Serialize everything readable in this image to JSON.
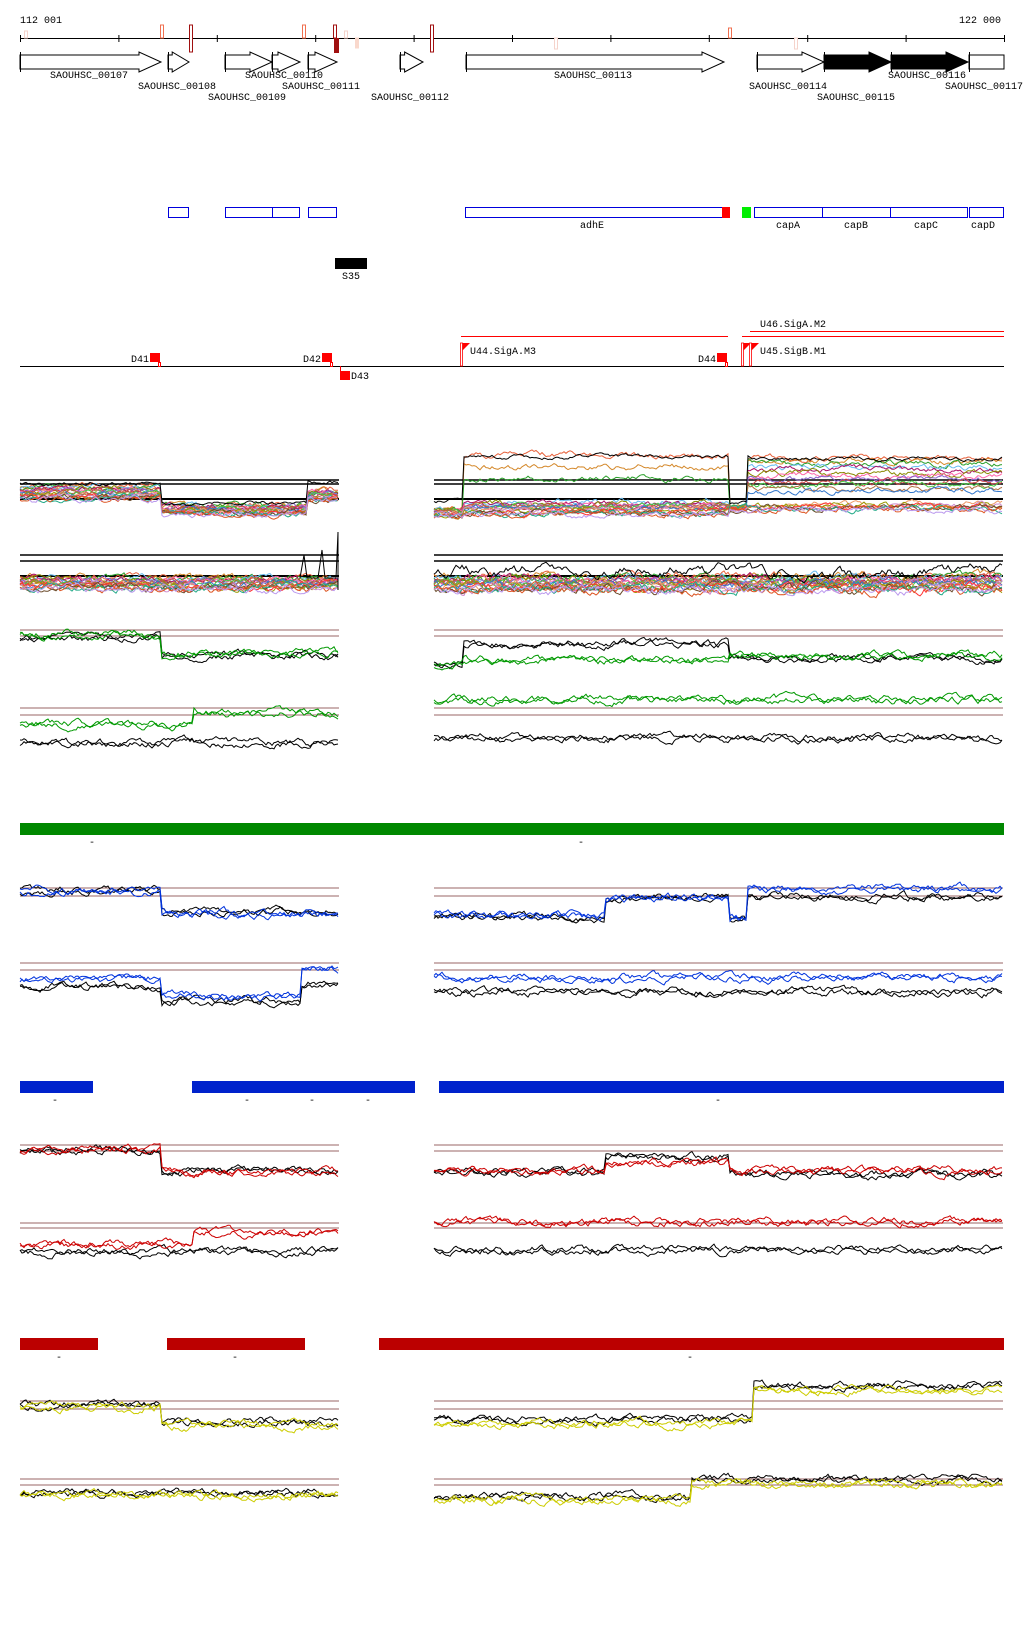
{
  "coordinates": {
    "start": "112 001",
    "end": "122 000"
  },
  "genes": [
    {
      "name": "SAOUHSC_00107",
      "filled": false
    },
    {
      "name": "SAOUHSC_00108",
      "filled": false
    },
    {
      "name": "SAOUHSC_00109",
      "filled": false
    },
    {
      "name": "SAOUHSC_00110",
      "filled": false
    },
    {
      "name": "SAOUHSC_00111",
      "filled": false
    },
    {
      "name": "SAOUHSC_00112",
      "filled": false
    },
    {
      "name": "SAOUHSC_00113",
      "filled": false
    },
    {
      "name": "SAOUHSC_00114",
      "filled": false
    },
    {
      "name": "SAOUHSC_00115",
      "filled": true
    },
    {
      "name": "SAOUHSC_00116",
      "filled": true
    },
    {
      "name": "SAOUHSC_00117",
      "filled": false
    }
  ],
  "annotations": {
    "named": [
      "adhE",
      "capA",
      "capB",
      "capC",
      "capD"
    ],
    "box_color": "#0000dd",
    "red_marker_color": "#ff0000",
    "green_marker_color": "#00ee00"
  },
  "srna": {
    "label": "S35"
  },
  "transcription_units": {
    "downstream": [
      "D41",
      "D42",
      "D43",
      "D44"
    ],
    "upstream": [
      "U44.SigA.M3",
      "U45.SigB.M1",
      "U46.SigA.M2"
    ],
    "color": "#ff0000"
  },
  "condition_bars": [
    {
      "color": "#008800",
      "tick": "-"
    },
    {
      "color": "#0022cc",
      "tick": "-"
    },
    {
      "color": "#bb0000",
      "tick": "-"
    }
  ],
  "track_colors": {
    "reference_line": "#996666",
    "green": "#009900",
    "blue": "#0033dd",
    "red": "#cc0000",
    "yellow": "#cccc00",
    "black": "#000000"
  }
}
